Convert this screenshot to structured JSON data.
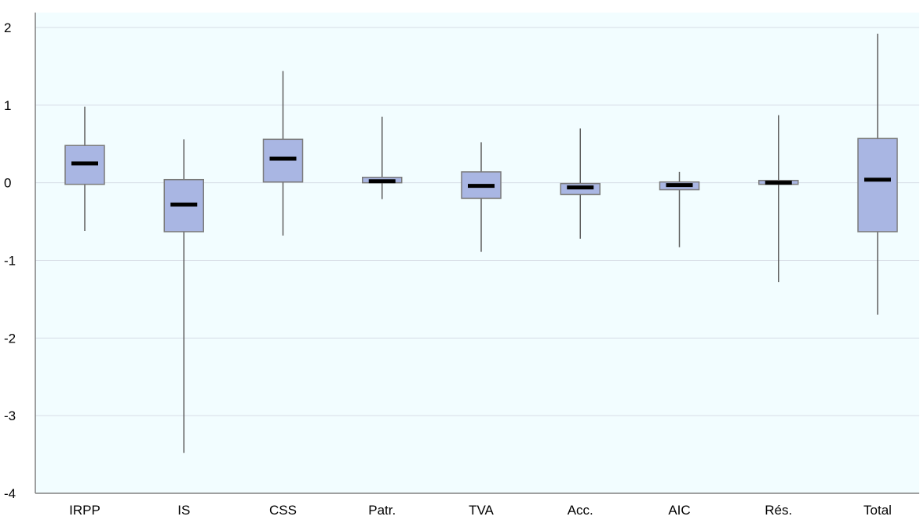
{
  "chart_data": {
    "type": "boxplot",
    "title": "",
    "xlabel": "",
    "ylabel": "",
    "ylim": [
      -4,
      2
    ],
    "yticks": [
      2,
      1,
      0,
      -1,
      -2,
      -3,
      -4
    ],
    "grid": true,
    "legend": "none",
    "colors": {
      "plot_background": "#f2fdff",
      "box_fill": "#a9b6e3",
      "box_stroke": "#7a7a7a",
      "whisker": "#5f5f5f",
      "median": "#000000",
      "grid": "#d7dde6",
      "axis": "#808080"
    },
    "categories": [
      "IRPP",
      "IS",
      "CSS",
      "Patr.",
      "TVA",
      "Acc.",
      "AIC",
      "Rés.",
      "Total"
    ],
    "boxes": [
      {
        "category": "IRPP",
        "whisker_low": -0.62,
        "q1": -0.02,
        "median": 0.25,
        "q3": 0.48,
        "whisker_high": 0.98
      },
      {
        "category": "IS",
        "whisker_low": -3.48,
        "q1": -0.63,
        "median": -0.28,
        "q3": 0.04,
        "whisker_high": 0.56
      },
      {
        "category": "CSS",
        "whisker_low": -0.68,
        "q1": 0.01,
        "median": 0.31,
        "q3": 0.56,
        "whisker_high": 1.44
      },
      {
        "category": "Patr.",
        "whisker_low": -0.21,
        "q1": 0.0,
        "median": 0.02,
        "q3": 0.07,
        "whisker_high": 0.85
      },
      {
        "category": "TVA",
        "whisker_low": -0.89,
        "q1": -0.2,
        "median": -0.04,
        "q3": 0.14,
        "whisker_high": 0.52
      },
      {
        "category": "Acc.",
        "whisker_low": -0.72,
        "q1": -0.15,
        "median": -0.06,
        "q3": -0.01,
        "whisker_high": 0.7
      },
      {
        "category": "AIC",
        "whisker_low": -0.83,
        "q1": -0.09,
        "median": -0.03,
        "q3": 0.01,
        "whisker_high": 0.14
      },
      {
        "category": "Rés.",
        "whisker_low": -1.28,
        "q1": -0.02,
        "median": 0.0,
        "q3": 0.03,
        "whisker_high": 0.87
      },
      {
        "category": "Total",
        "whisker_low": -1.7,
        "q1": -0.63,
        "median": 0.04,
        "q3": 0.57,
        "whisker_high": 1.92
      }
    ]
  }
}
